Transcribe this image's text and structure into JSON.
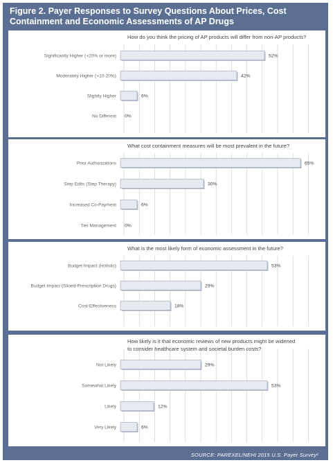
{
  "figure": {
    "title": "Figure 2. Payer Responses to Survey Questions About Prices, Cost Containment and Economic Assessments of AP Drugs",
    "source": "SOURCE: PAREXEL/NEHI 2015 U.S. Payer Survey¹"
  },
  "colors": {
    "frame": "#5b6f93",
    "bar_fill": "#e6e9f0",
    "bar_stroke": "#9aa2b5",
    "grid": "#d0d0d0"
  },
  "chart_data": [
    {
      "type": "bar",
      "orientation": "horizontal",
      "title": "How do you think the pricing of AP products will differ from non-AP products?",
      "categories": [
        "Significantly Higher (+20% or more)",
        "Moderately Higher (+10-20%)",
        "Slightly Higher",
        "No Different"
      ],
      "values": [
        52,
        42,
        6,
        0
      ],
      "value_labels": [
        "52%",
        "42%",
        "6%",
        "0%"
      ],
      "unit": "%",
      "xlim": [
        0,
        65
      ],
      "grid": true
    },
    {
      "type": "bar",
      "orientation": "horizontal",
      "title": "What cost containment measures will be most prevalent in the future?",
      "categories": [
        "Prior Authorizations",
        "Step Edits (Step Therapy)",
        "Increased Co-Payment",
        "Tier Management"
      ],
      "values": [
        65,
        30,
        6,
        0
      ],
      "value_labels": [
        "65%",
        "30%",
        "6%",
        "0%"
      ],
      "unit": "%",
      "xlim": [
        0,
        65
      ],
      "grid": true
    },
    {
      "type": "bar",
      "orientation": "horizontal",
      "title": "What is the most likely form of economic assessment in the future?",
      "categories": [
        "Budget Impact (Holistic)",
        "Budget Impact (Siloed-Prescription Drugs)",
        "Cost-Effectiveness"
      ],
      "values": [
        53,
        29,
        18
      ],
      "value_labels": [
        "53%",
        "29%",
        "18%"
      ],
      "unit": "%",
      "xlim": [
        0,
        65
      ],
      "grid": true
    },
    {
      "type": "bar",
      "orientation": "horizontal",
      "title": "How likely is it that economic reviews of new products might be widened to consider healthcare system and societal burden costs?",
      "title_lines": [
        "How likely is it that economic reviews of new products might be widened",
        "to consider healthcare system and societal burden costs?"
      ],
      "categories": [
        "Not Likely",
        "Somewhat Likely",
        "Likely",
        "Very Likely"
      ],
      "values": [
        29,
        53,
        12,
        6
      ],
      "value_labels": [
        "29%",
        "53%",
        "12%",
        "6%"
      ],
      "unit": "%",
      "xlim": [
        0,
        65
      ],
      "grid": true
    }
  ]
}
